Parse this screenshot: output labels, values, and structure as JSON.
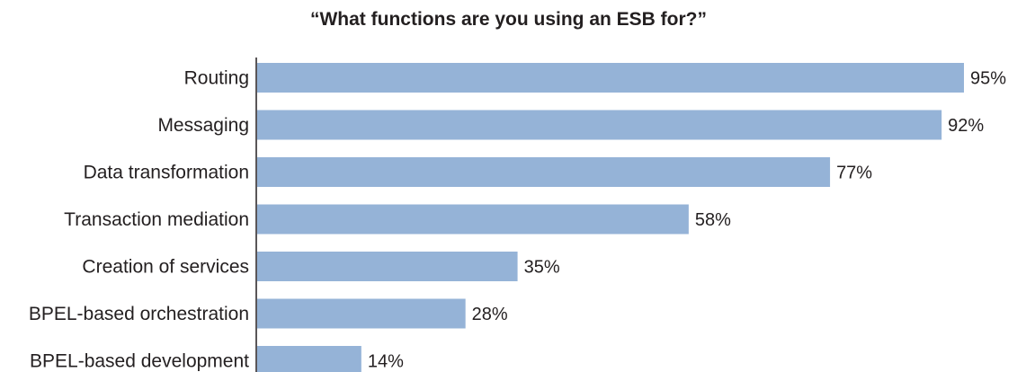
{
  "chart_data": {
    "type": "bar",
    "orientation": "horizontal",
    "title": "“What functions are you using an ESB for?”",
    "categories": [
      "Routing",
      "Messaging",
      "Data transformation",
      "Transaction mediation",
      "Creation of services",
      "BPEL-based orchestration",
      "BPEL-based development"
    ],
    "values": [
      95,
      92,
      77,
      58,
      35,
      28,
      14
    ],
    "value_labels": [
      "95%",
      "92%",
      "77%",
      "58%",
      "35%",
      "28%",
      "14%"
    ],
    "unit": "%",
    "xlim": [
      0,
      100
    ],
    "grid": false,
    "legend": "none",
    "bar_color": "#95b3d7",
    "axis_color": "#231f20"
  }
}
